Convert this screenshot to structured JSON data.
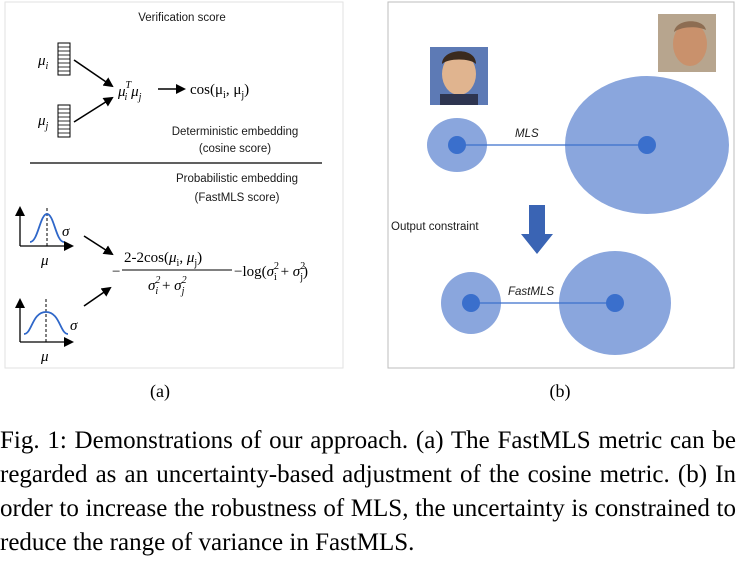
{
  "panel_a": {
    "verification_title": "Verification score",
    "mu_i": "μ",
    "mu_j": "μ",
    "product_label": "μ",
    "cos_label": "cos(μ",
    "deterministic_line1": "Deterministic embedding",
    "deterministic_line2": "(cosine score)",
    "probabilistic_line1": "Probabilistic embedding",
    "probabilistic_line2": "(FastMLS score)",
    "sigma": "σ",
    "mu": "μ",
    "formula_numerator": "2-2cos(μi, μj)",
    "formula_denominator": "σi² + σj²",
    "formula_log": "− log(σi² + σj²)",
    "label": "(a)"
  },
  "panel_b": {
    "mls_label": "MLS",
    "output_constraint": "Output constraint",
    "fastmls_label": "FastMLS",
    "label": "(b)",
    "ellipse_color": "#8aa6dd",
    "point_color": "#3a6fcc",
    "arrow_color": "#3a64b4"
  },
  "caption": {
    "text": "Fig. 1:  Demonstrations of our approach. (a) The FastMLS metric can be regarded as an uncertainty-based adjustment of the cosine metric. (b) In order to increase the robustness of MLS, the uncertainty is constrained to reduce the range of variance in FastMLS."
  }
}
